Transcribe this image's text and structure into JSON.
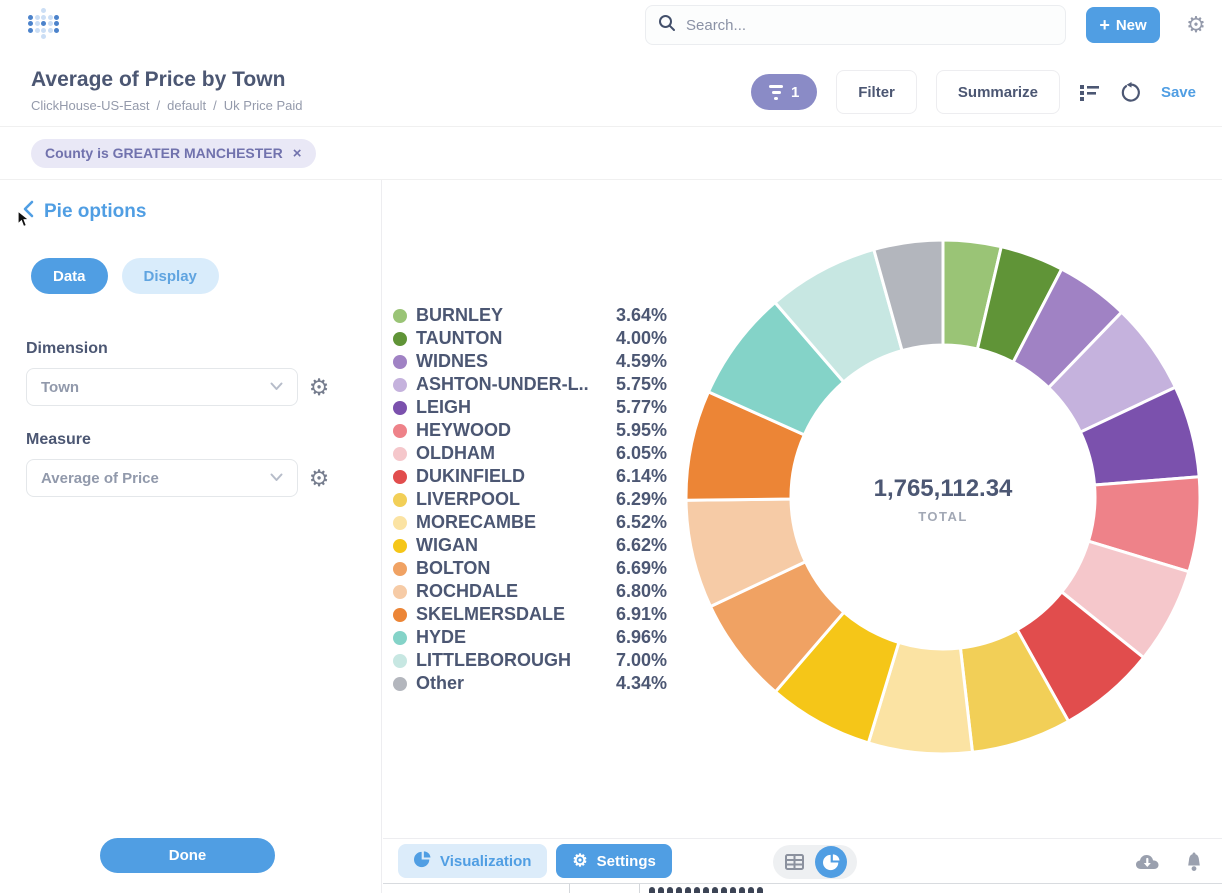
{
  "colors": {
    "brand": "#509ee3",
    "text_dark": "#4c5773",
    "text_light": "#949aab",
    "filter_badge_bg": "#8a8bc6",
    "filter_pill_bg": "#e9e8f6",
    "filter_pill_text": "#7172ad"
  },
  "header": {
    "search_placeholder": "Search...",
    "plus_glyph": "+",
    "new_label": "New",
    "gear_glyph": "⚙"
  },
  "title_bar": {
    "title": "Average of Price by Town",
    "breadcrumb": [
      "ClickHouse-US-East",
      "default",
      "Uk Price Paid"
    ],
    "separator": "/",
    "filter_count": "1",
    "filter_label": "Filter",
    "summarize_label": "Summarize",
    "save_label": "Save"
  },
  "filter_bar": {
    "filter_text": "County is GREATER MANCHESTER",
    "close_glyph": "×"
  },
  "sidebar": {
    "heading": "Pie options",
    "tab_data": "Data",
    "tab_display": "Display",
    "dimension_label": "Dimension",
    "dimension_value": "Town",
    "measure_label": "Measure",
    "measure_value": "Average of Price",
    "gear_glyph": "⚙",
    "done_label": "Done"
  },
  "chart_data": {
    "type": "pie",
    "donut": true,
    "legend_position": "left",
    "total_value": "1,765,112.34",
    "total_label": "TOTAL",
    "start_angle_deg": 0,
    "series": [
      {
        "name": "BURNLEY",
        "percent": 3.64,
        "pct_label": "3.64%",
        "color": "#9ac476"
      },
      {
        "name": "TAUNTON",
        "percent": 4.0,
        "pct_label": "4.00%",
        "color": "#609437"
      },
      {
        "name": "WIDNES",
        "percent": 4.59,
        "pct_label": "4.59%",
        "color": "#a082c4"
      },
      {
        "name": "ASHTON-UNDER-L..",
        "percent": 5.75,
        "pct_label": "5.75%",
        "color": "#c5b2dd"
      },
      {
        "name": "LEIGH",
        "percent": 5.77,
        "pct_label": "5.77%",
        "color": "#7b51ad"
      },
      {
        "name": "HEYWOOD",
        "percent": 5.95,
        "pct_label": "5.95%",
        "color": "#ee8289"
      },
      {
        "name": "OLDHAM",
        "percent": 6.05,
        "pct_label": "6.05%",
        "color": "#f5c7cb"
      },
      {
        "name": "DUKINFIELD",
        "percent": 6.14,
        "pct_label": "6.14%",
        "color": "#e14d4d"
      },
      {
        "name": "LIVERPOOL",
        "percent": 6.29,
        "pct_label": "6.29%",
        "color": "#f2cf57"
      },
      {
        "name": "MORECAMBE",
        "percent": 6.52,
        "pct_label": "6.52%",
        "color": "#fbe3a3"
      },
      {
        "name": "WIGAN",
        "percent": 6.62,
        "pct_label": "6.62%",
        "color": "#f5c618"
      },
      {
        "name": "BOLTON",
        "percent": 6.69,
        "pct_label": "6.69%",
        "color": "#f0a263"
      },
      {
        "name": "ROCHDALE",
        "percent": 6.8,
        "pct_label": "6.80%",
        "color": "#f6cba6"
      },
      {
        "name": "SKELMERSDALE",
        "percent": 6.91,
        "pct_label": "6.91%",
        "color": "#ec8536"
      },
      {
        "name": "HYDE",
        "percent": 6.96,
        "pct_label": "6.96%",
        "color": "#84d3c8"
      },
      {
        "name": "LITTLEBOROUGH",
        "percent": 7.0,
        "pct_label": "7.00%",
        "color": "#c7e7e2"
      },
      {
        "name": "Other",
        "percent": 4.34,
        "pct_label": "4.34%",
        "color": "#b3b6bd"
      }
    ]
  },
  "footer": {
    "visualization_label": "Visualization",
    "settings_label": "Settings",
    "gear_glyph": "⚙"
  }
}
